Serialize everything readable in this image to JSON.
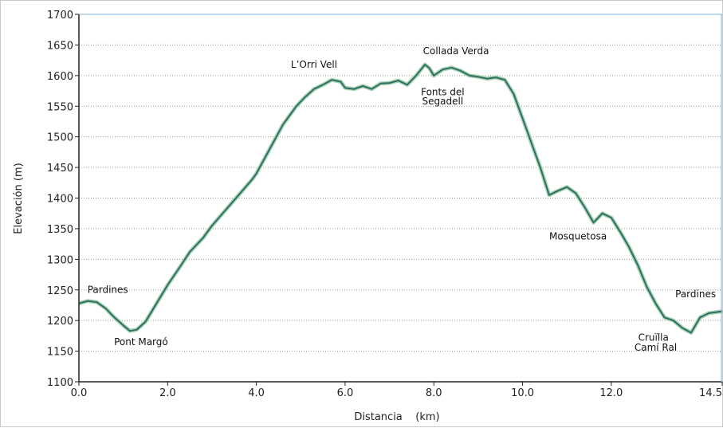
{
  "chart_data": {
    "type": "area",
    "title": "",
    "xlabel": "Distancia    (km)",
    "ylabel": "Elevación (m)",
    "xlim": [
      0,
      14.5
    ],
    "ylim": [
      1100,
      1700
    ],
    "x_ticks": [
      "0.0",
      "2.0",
      "4.0",
      "6.0",
      "8.0",
      "10.0",
      "12.0",
      "14.5"
    ],
    "y_ticks": [
      "1100",
      "1150",
      "1200",
      "1250",
      "1300",
      "1350",
      "1400",
      "1450",
      "1500",
      "1550",
      "1600",
      "1650",
      "1700"
    ],
    "grid": "horizontal dotted",
    "line_color": "#2f6f6a",
    "series": [
      {
        "x": [
          0.0,
          0.2,
          0.4,
          0.6,
          0.8,
          1.0,
          1.15,
          1.3,
          1.5,
          1.7,
          2.0,
          2.3,
          2.5,
          2.8,
          3.0,
          3.3,
          3.6,
          3.9,
          4.0,
          4.3,
          4.6,
          4.9,
          5.1,
          5.3,
          5.5,
          5.7,
          5.9,
          6.0,
          6.2,
          6.4,
          6.6,
          6.8,
          7.0,
          7.2,
          7.4,
          7.6,
          7.8,
          7.9,
          8.0,
          8.2,
          8.4,
          8.6,
          8.8,
          9.0,
          9.2,
          9.4,
          9.6,
          9.8,
          10.0,
          10.2,
          10.4,
          10.6,
          10.8,
          11.0,
          11.2,
          11.4,
          11.6,
          11.8,
          12.0,
          12.2,
          12.4,
          12.6,
          12.8,
          13.0,
          13.2,
          13.4,
          13.6,
          13.8,
          14.0,
          14.2,
          14.5
        ],
        "y": [
          1228,
          1232,
          1230,
          1220,
          1205,
          1192,
          1183,
          1185,
          1198,
          1222,
          1258,
          1290,
          1312,
          1335,
          1355,
          1380,
          1405,
          1430,
          1440,
          1480,
          1520,
          1550,
          1565,
          1578,
          1585,
          1593,
          1590,
          1580,
          1578,
          1583,
          1578,
          1587,
          1588,
          1592,
          1585,
          1600,
          1618,
          1612,
          1600,
          1610,
          1613,
          1608,
          1600,
          1598,
          1595,
          1597,
          1593,
          1570,
          1530,
          1490,
          1450,
          1405,
          1412,
          1418,
          1408,
          1385,
          1360,
          1375,
          1368,
          1345,
          1320,
          1290,
          1255,
          1228,
          1205,
          1200,
          1188,
          1180,
          1205,
          1212,
          1215
        ]
      }
    ],
    "annotations": [
      {
        "text": "Pardines",
        "x": 0.65,
        "y": 1245
      },
      {
        "text": "Pont Margó",
        "x": 1.4,
        "y": 1160
      },
      {
        "text": "L’Orri Vell",
        "x": 5.3,
        "y": 1613
      },
      {
        "text": "Collada Verda",
        "x": 8.5,
        "y": 1635
      },
      {
        "text": "Fonts del",
        "x": 8.2,
        "y": 1568
      },
      {
        "text": "Segadell",
        "x": 8.2,
        "y": 1553
      },
      {
        "text": "Mosquetosa",
        "x": 11.25,
        "y": 1332
      },
      {
        "text": "Pardines",
        "x": 13.9,
        "y": 1238
      },
      {
        "text": "Cruïlla",
        "x": 12.95,
        "y": 1167
      },
      {
        "text": "Camí Ral",
        "x": 13.0,
        "y": 1151
      }
    ]
  }
}
